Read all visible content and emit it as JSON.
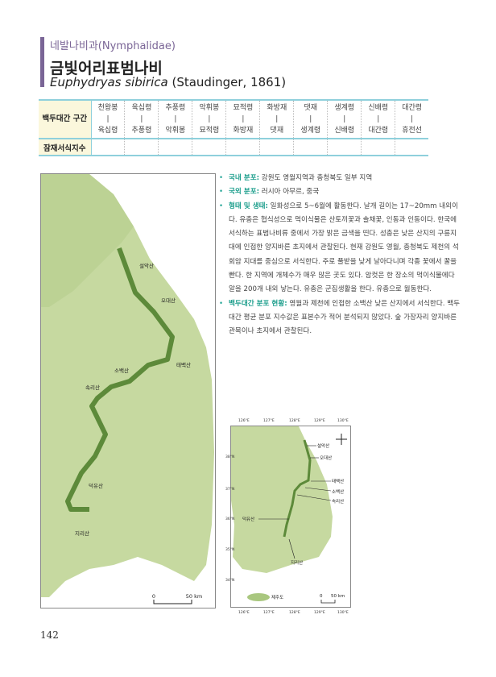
{
  "header": {
    "family": "네발나비과(Nymphalidae)",
    "title": "금빛어리표범나비",
    "scientific_name": "Euphydryas sibirica",
    "author": "(Staudinger, 1861)"
  },
  "table": {
    "row1_header": "백두대간 구간",
    "row2_header": "잠재서식지수",
    "sections": [
      {
        "from": "천왕봉",
        "to": "육십령"
      },
      {
        "from": "육십령",
        "to": "추풍령"
      },
      {
        "from": "추풍령",
        "to": "악휘봉"
      },
      {
        "from": "악휘봉",
        "to": "묘적령"
      },
      {
        "from": "묘적령",
        "to": "화방재"
      },
      {
        "from": "화방재",
        "to": "댓재"
      },
      {
        "from": "댓재",
        "to": "생계령"
      },
      {
        "from": "생계령",
        "to": "신배령"
      },
      {
        "from": "신배령",
        "to": "대간령"
      },
      {
        "from": "대간령",
        "to": "휴전선"
      }
    ],
    "separator": "|"
  },
  "description": [
    {
      "label": "국내 분포:",
      "text": " 강원도 영월지역과 충청북도 일부 지역"
    },
    {
      "label": "국외 분포:",
      "text": " 러시아 아무르, 중국"
    },
    {
      "label": "형태 및 생태:",
      "text": " 일화성으로 5~6월에 활동한다. 날개 길이는 17~20mm 내외이다. 유충은 협식성으로 먹이식물은 산토끼꽃과 솔채꽃, 인동과 인동이다. 한국에 서식하는 표범나비류 중에서 가장 밝은 금색을 띤다. 성충은 낮은 산지의 구릉지대에 인접한 양지바른 초지에서 관찰된다. 현재 강원도 영월, 충청북도 제천의 석회암 지대를 중심으로 서식한다. 주로 풀밭을 낮게 날아다니며 각종 꽃에서 꿀을 빤다. 한 지역에 개체수가 매우 많은 곳도 있다. 암컷은 한 장소의 먹이식물에다 알을 200개 내외 낳는다. 유충은 군집생활을 한다. 유충으로 월동한다."
    },
    {
      "label": "백두대간 분포 현황:",
      "text": " 영월과 제천에 인접한 소백산 낮은 산지에서 서식한다. 백두대간 평균 분포 지수값은 표본수가 적어 분석되지 않았다. 숲 가장자리 양지바른 관목이나 초지에서 관찰된다."
    }
  ],
  "main_map": {
    "labels": [
      "설악산",
      "오대산",
      "태백산",
      "소백산",
      "속리산",
      "덕유산",
      "지리산"
    ],
    "scale": {
      "zero": "0",
      "max": "50 km"
    }
  },
  "inset_map": {
    "labels": [
      "설악산",
      "오대산",
      "태백산",
      "소백산",
      "속리산",
      "덕유산",
      "지리산",
      "제주도"
    ],
    "lon_ticks": [
      "126°E",
      "127°E",
      "128°E",
      "129°E",
      "130°E"
    ],
    "lat_ticks": [
      "38°N",
      "37°N",
      "36°N",
      "35°N",
      "34°N"
    ],
    "scale": {
      "zero": "0",
      "max": "50 km"
    }
  },
  "page_number": "142",
  "colors": {
    "accent": "#7a6596",
    "table_border": "#8fd0dc",
    "label": "#1c9e8c",
    "land": "#c9dca6",
    "ridge": "#5d8a3a"
  }
}
